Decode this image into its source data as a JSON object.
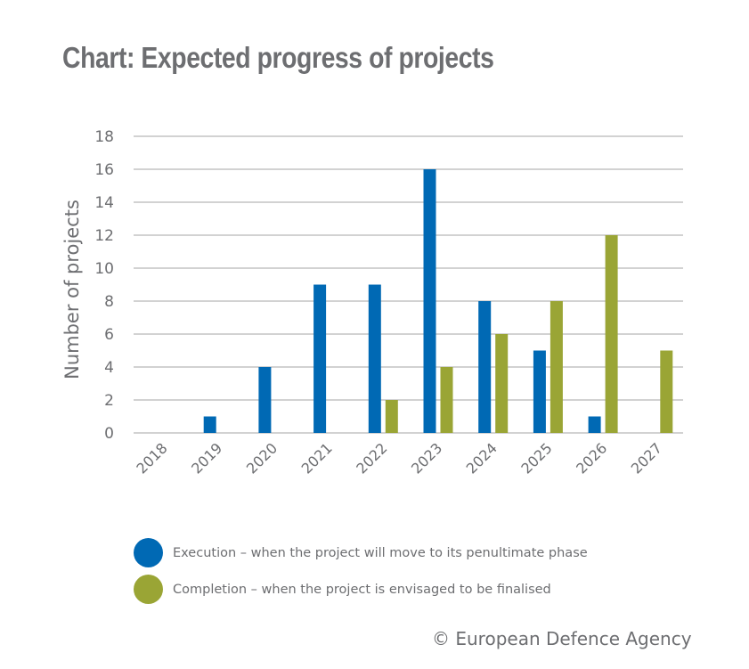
{
  "title": "Chart: Expected progress of projects",
  "copyright": "© European Defence Agency",
  "colors": {
    "execution": "#0069b4",
    "completion": "#9aa535",
    "gridline": "#c4c4c4",
    "text": "#6d6e71"
  },
  "legend": [
    {
      "key": "execution",
      "label": "Execution – when the project will move to its penultimate phase"
    },
    {
      "key": "completion",
      "label": "Completion – when the project is envisaged to be finalised"
    }
  ],
  "chart_data": {
    "type": "bar",
    "title": "Chart: Expected progress of projects",
    "xlabel": "",
    "ylabel": "Number of projects",
    "ylim": [
      0,
      18
    ],
    "yticks": [
      0,
      2,
      4,
      6,
      8,
      10,
      12,
      14,
      16,
      18
    ],
    "grid": true,
    "legend_position": "bottom",
    "categories": [
      "2018",
      "2019",
      "2020",
      "2021",
      "2022",
      "2023",
      "2024",
      "2025",
      "2026",
      "2027"
    ],
    "series": [
      {
        "name": "Execution – when the project will move to its penultimate phase",
        "key": "execution",
        "values": [
          0,
          1,
          4,
          9,
          9,
          16,
          8,
          5,
          1,
          0
        ]
      },
      {
        "name": "Completion – when the project is envisaged to be finalised",
        "key": "completion",
        "values": [
          0,
          0,
          0,
          0,
          2,
          4,
          6,
          8,
          12,
          5
        ]
      }
    ]
  }
}
